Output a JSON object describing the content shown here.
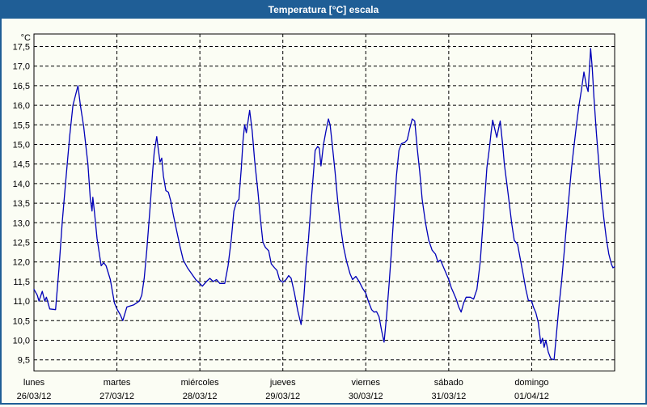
{
  "window": {
    "title": "Temperatura [°C] escala"
  },
  "colors": {
    "titlebar_bg": "#1F5E96",
    "window_border": "#1F5E96",
    "background": "#FBFDF4",
    "plot_border": "#000000",
    "grid": "#000000",
    "line": "#0000B8",
    "title_text": "#FFFFFF",
    "label_text": "#000000"
  },
  "chart_data": {
    "type": "line",
    "title": "Temperatura [°C] escala",
    "ylabel": "°C",
    "series_name": "Temperatura",
    "grid": "dashed",
    "legend_position": "none",
    "y_axis": {
      "max": 17.5,
      "min": 9.5,
      "step": 0.5,
      "tick_labels": [
        "17,5",
        "17,0",
        "16,5",
        "16,0",
        "15,5",
        "15,0",
        "14,5",
        "14,0",
        "13,5",
        "13,0",
        "12,5",
        "12,0",
        "11,5",
        "11,0",
        "10,5",
        "10,0",
        "9,5"
      ]
    },
    "x_axis": {
      "unit": "day",
      "days": [
        {
          "name": "lunes",
          "date": "26/03/12"
        },
        {
          "name": "martes",
          "date": "27/03/12"
        },
        {
          "name": "miércoles",
          "date": "28/03/12"
        },
        {
          "name": "jueves",
          "date": "29/03/12"
        },
        {
          "name": "viernes",
          "date": "30/03/12"
        },
        {
          "name": "sábado",
          "date": "31/03/12"
        },
        {
          "name": "domingo",
          "date": "01/04/12"
        }
      ]
    },
    "points_x_unit": "days since start of lunes 26/03/12",
    "points": [
      [
        0,
        11.3
      ],
      [
        0.04,
        11.15
      ],
      [
        0.06,
        11.0
      ],
      [
        0.1,
        11.25
      ],
      [
        0.13,
        11.0
      ],
      [
        0.15,
        11.1
      ],
      [
        0.19,
        10.8
      ],
      [
        0.26,
        10.78
      ],
      [
        0.3,
        11.8
      ],
      [
        0.34,
        13.0
      ],
      [
        0.38,
        14.0
      ],
      [
        0.43,
        15.2
      ],
      [
        0.47,
        16.0
      ],
      [
        0.53,
        16.5
      ],
      [
        0.56,
        16.0
      ],
      [
        0.6,
        15.45
      ],
      [
        0.65,
        14.5
      ],
      [
        0.68,
        13.6
      ],
      [
        0.7,
        13.3
      ],
      [
        0.71,
        13.65
      ],
      [
        0.73,
        13.25
      ],
      [
        0.76,
        12.6
      ],
      [
        0.81,
        11.9
      ],
      [
        0.84,
        11.98
      ],
      [
        0.87,
        11.9
      ],
      [
        0.92,
        11.55
      ],
      [
        0.97,
        10.95
      ],
      [
        1.0,
        10.8
      ],
      [
        1.04,
        10.65
      ],
      [
        1.07,
        10.5
      ],
      [
        1.12,
        10.85
      ],
      [
        1.2,
        10.9
      ],
      [
        1.27,
        11.0
      ],
      [
        1.3,
        11.15
      ],
      [
        1.33,
        11.6
      ],
      [
        1.36,
        12.3
      ],
      [
        1.4,
        13.4
      ],
      [
        1.43,
        14.3
      ],
      [
        1.45,
        14.8
      ],
      [
        1.48,
        15.2
      ],
      [
        1.5,
        14.85
      ],
      [
        1.52,
        14.55
      ],
      [
        1.54,
        14.65
      ],
      [
        1.56,
        14.2
      ],
      [
        1.59,
        13.82
      ],
      [
        1.62,
        13.78
      ],
      [
        1.65,
        13.55
      ],
      [
        1.68,
        13.2
      ],
      [
        1.72,
        12.8
      ],
      [
        1.76,
        12.4
      ],
      [
        1.8,
        12.05
      ],
      [
        1.85,
        11.85
      ],
      [
        1.9,
        11.7
      ],
      [
        1.95,
        11.55
      ],
      [
        2.0,
        11.45
      ],
      [
        2.03,
        11.38
      ],
      [
        2.08,
        11.5
      ],
      [
        2.12,
        11.58
      ],
      [
        2.16,
        11.5
      ],
      [
        2.2,
        11.55
      ],
      [
        2.24,
        11.45
      ],
      [
        2.3,
        11.45
      ],
      [
        2.34,
        11.9
      ],
      [
        2.38,
        12.6
      ],
      [
        2.41,
        13.3
      ],
      [
        2.44,
        13.52
      ],
      [
        2.47,
        13.6
      ],
      [
        2.5,
        14.4
      ],
      [
        2.52,
        15.1
      ],
      [
        2.54,
        15.5
      ],
      [
        2.56,
        15.3
      ],
      [
        2.6,
        15.87
      ],
      [
        2.63,
        15.35
      ],
      [
        2.66,
        14.6
      ],
      [
        2.7,
        13.8
      ],
      [
        2.73,
        13.1
      ],
      [
        2.76,
        12.5
      ],
      [
        2.79,
        12.37
      ],
      [
        2.83,
        12.28
      ],
      [
        2.86,
        11.95
      ],
      [
        2.9,
        11.85
      ],
      [
        2.93,
        11.78
      ],
      [
        2.96,
        11.55
      ],
      [
        3.0,
        11.48
      ],
      [
        3.04,
        11.55
      ],
      [
        3.07,
        11.65
      ],
      [
        3.1,
        11.58
      ],
      [
        3.14,
        11.2
      ],
      [
        3.18,
        10.75
      ],
      [
        3.22,
        10.4
      ],
      [
        3.25,
        11.0
      ],
      [
        3.28,
        11.9
      ],
      [
        3.31,
        12.6
      ],
      [
        3.34,
        13.5
      ],
      [
        3.37,
        14.3
      ],
      [
        3.39,
        14.85
      ],
      [
        3.42,
        14.95
      ],
      [
        3.44,
        14.9
      ],
      [
        3.46,
        14.45
      ],
      [
        3.49,
        15.0
      ],
      [
        3.52,
        15.35
      ],
      [
        3.55,
        15.65
      ],
      [
        3.57,
        15.5
      ],
      [
        3.6,
        14.9
      ],
      [
        3.63,
        14.3
      ],
      [
        3.66,
        13.6
      ],
      [
        3.69,
        13.0
      ],
      [
        3.73,
        12.4
      ],
      [
        3.77,
        12.0
      ],
      [
        3.81,
        11.7
      ],
      [
        3.84,
        11.55
      ],
      [
        3.88,
        11.63
      ],
      [
        3.92,
        11.5
      ],
      [
        3.96,
        11.33
      ],
      [
        4.0,
        11.2
      ],
      [
        4.03,
        11.0
      ],
      [
        4.07,
        10.78
      ],
      [
        4.1,
        10.72
      ],
      [
        4.13,
        10.73
      ],
      [
        4.16,
        10.6
      ],
      [
        4.19,
        10.25
      ],
      [
        4.22,
        9.95
      ],
      [
        4.25,
        10.6
      ],
      [
        4.28,
        11.4
      ],
      [
        4.31,
        12.3
      ],
      [
        4.34,
        13.3
      ],
      [
        4.37,
        14.2
      ],
      [
        4.4,
        14.85
      ],
      [
        4.43,
        15.02
      ],
      [
        4.47,
        15.05
      ],
      [
        4.5,
        15.12
      ],
      [
        4.53,
        15.4
      ],
      [
        4.56,
        15.65
      ],
      [
        4.59,
        15.6
      ],
      [
        4.62,
        14.9
      ],
      [
        4.65,
        14.3
      ],
      [
        4.68,
        13.6
      ],
      [
        4.72,
        13.0
      ],
      [
        4.76,
        12.55
      ],
      [
        4.8,
        12.3
      ],
      [
        4.84,
        12.2
      ],
      [
        4.87,
        12.0
      ],
      [
        4.9,
        12.05
      ],
      [
        4.94,
        11.85
      ],
      [
        4.97,
        11.7
      ],
      [
        5.0,
        11.55
      ],
      [
        5.03,
        11.35
      ],
      [
        5.06,
        11.2
      ],
      [
        5.09,
        11.05
      ],
      [
        5.12,
        10.85
      ],
      [
        5.15,
        10.72
      ],
      [
        5.18,
        10.95
      ],
      [
        5.21,
        11.1
      ],
      [
        5.26,
        11.1
      ],
      [
        5.3,
        11.05
      ],
      [
        5.34,
        11.3
      ],
      [
        5.38,
        12.0
      ],
      [
        5.41,
        12.9
      ],
      [
        5.44,
        13.8
      ],
      [
        5.46,
        14.4
      ],
      [
        5.49,
        14.9
      ],
      [
        5.51,
        15.3
      ],
      [
        5.53,
        15.62
      ],
      [
        5.56,
        15.35
      ],
      [
        5.58,
        15.18
      ],
      [
        5.6,
        15.4
      ],
      [
        5.62,
        15.6
      ],
      [
        5.65,
        15.0
      ],
      [
        5.67,
        14.5
      ],
      [
        5.7,
        14.0
      ],
      [
        5.73,
        13.5
      ],
      [
        5.76,
        12.97
      ],
      [
        5.79,
        12.55
      ],
      [
        5.83,
        12.45
      ],
      [
        5.86,
        12.1
      ],
      [
        5.9,
        11.65
      ],
      [
        5.93,
        11.3
      ],
      [
        5.96,
        11.02
      ],
      [
        6.0,
        11.0
      ],
      [
        6.02,
        10.85
      ],
      [
        6.05,
        10.7
      ],
      [
        6.08,
        10.45
      ],
      [
        6.11,
        9.92
      ],
      [
        6.13,
        10.05
      ],
      [
        6.15,
        9.82
      ],
      [
        6.17,
        10.0
      ],
      [
        6.2,
        9.7
      ],
      [
        6.23,
        9.53
      ],
      [
        6.27,
        9.5
      ],
      [
        6.3,
        10.2
      ],
      [
        6.33,
        10.9
      ],
      [
        6.36,
        11.5
      ],
      [
        6.39,
        12.2
      ],
      [
        6.42,
        12.95
      ],
      [
        6.45,
        13.7
      ],
      [
        6.48,
        14.4
      ],
      [
        6.51,
        14.95
      ],
      [
        6.54,
        15.5
      ],
      [
        6.57,
        16.0
      ],
      [
        6.6,
        16.4
      ],
      [
        6.63,
        16.85
      ],
      [
        6.66,
        16.5
      ],
      [
        6.68,
        16.35
      ],
      [
        6.71,
        17.45
      ],
      [
        6.73,
        16.95
      ],
      [
        6.75,
        16.2
      ],
      [
        6.78,
        15.3
      ],
      [
        6.81,
        14.5
      ],
      [
        6.84,
        13.7
      ],
      [
        6.87,
        13.1
      ],
      [
        6.9,
        12.6
      ],
      [
        6.93,
        12.2
      ],
      [
        6.96,
        11.95
      ],
      [
        6.98,
        11.85
      ],
      [
        7.0,
        11.88
      ]
    ]
  }
}
